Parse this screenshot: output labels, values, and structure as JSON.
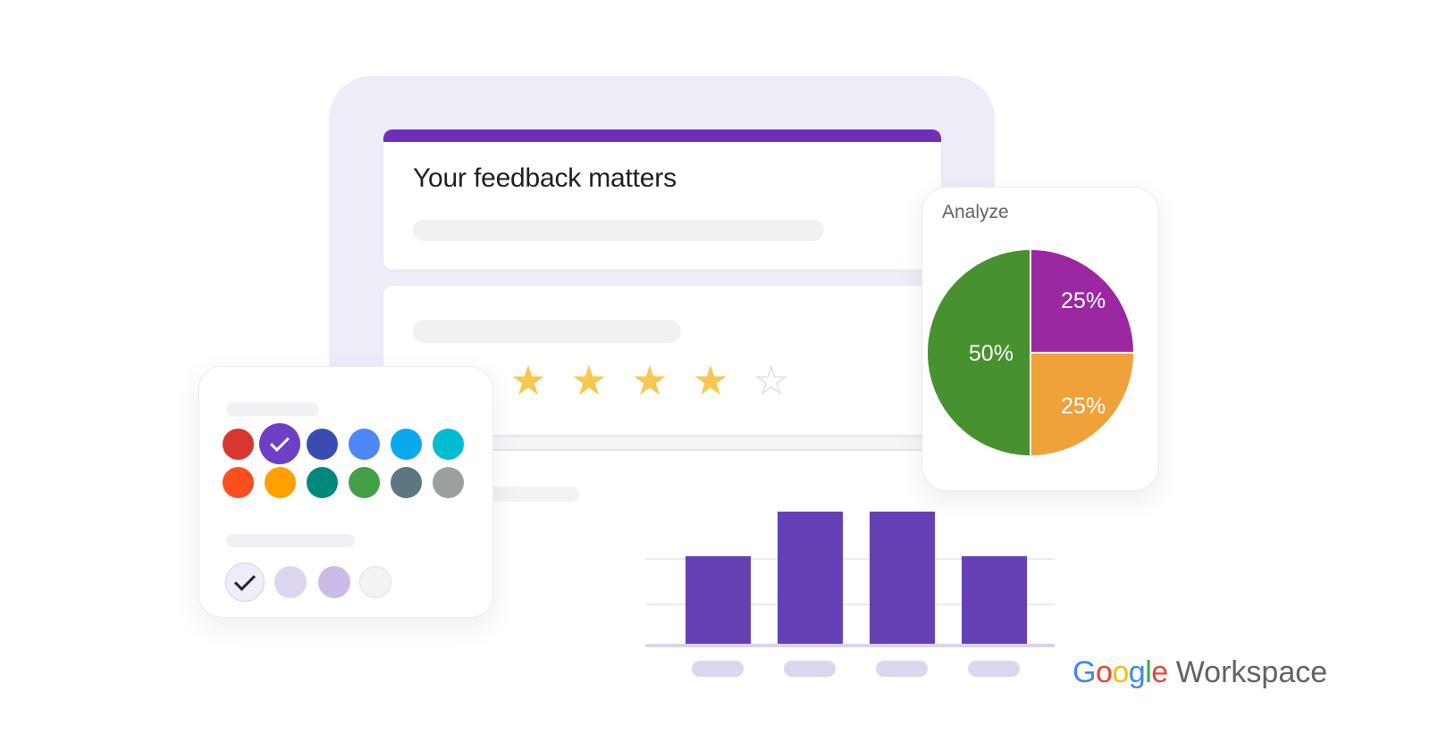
{
  "form": {
    "title": "Your feedback matters",
    "header_bar_color": "#6d31b9",
    "rating": {
      "filled": 4,
      "total": 5,
      "filled_color": "#f6c851",
      "empty_color": "#d9dbdf"
    }
  },
  "theme_panel": {
    "selected_row1_index": 1,
    "colors_row1": [
      "#d7372e",
      "#6d3fc4",
      "#3a4cb1",
      "#4c87f5",
      "#09a9ef",
      "#00bcd1"
    ],
    "colors_row2": [
      "#fb4f1f",
      "#ffa000",
      "#00897b",
      "#43a047",
      "#5c7682",
      "#9aa0a0"
    ],
    "background_options": [
      {
        "color": "#f0ecf8",
        "border": "#d7d0e8",
        "selected": true
      },
      {
        "color": "#ded5f1",
        "border": "",
        "selected": false
      },
      {
        "color": "#cabbe9",
        "border": "",
        "selected": false
      },
      {
        "color": "#f3f2f4",
        "border": "#e3e2e6",
        "selected": false
      }
    ]
  },
  "analyze_card": {
    "title": "Analyze"
  },
  "chart_data": [
    {
      "type": "pie",
      "title": "Analyze",
      "slices": [
        {
          "label": "25%",
          "value": 25,
          "color": "#9c28a1"
        },
        {
          "label": "25%",
          "value": 25,
          "color": "#f0a13a"
        },
        {
          "label": "50%",
          "value": 50,
          "color": "#47922f"
        }
      ],
      "start_angle_deg": 0,
      "label_color": "#ffffff",
      "legend": "none"
    },
    {
      "type": "bar",
      "categories": [
        "",
        "",
        "",
        ""
      ],
      "values": [
        2,
        3,
        3,
        2
      ],
      "ylim": [
        0,
        3
      ],
      "bar_color": "#6540b5",
      "gridline_color": "#eceaf2",
      "baseline_color": "#d9d3ec",
      "axis_pill_color": "#ddd6ef",
      "grid": true
    }
  ],
  "logo": {
    "letters": [
      {
        "char": "G",
        "color": "#4285f4"
      },
      {
        "char": "o",
        "color": "#ea4335"
      },
      {
        "char": "o",
        "color": "#fbbc05"
      },
      {
        "char": "g",
        "color": "#4285f4"
      },
      {
        "char": "l",
        "color": "#34a853"
      },
      {
        "char": "e",
        "color": "#ea4335"
      }
    ],
    "suffix": "Workspace",
    "suffix_color": "#5f6368"
  }
}
